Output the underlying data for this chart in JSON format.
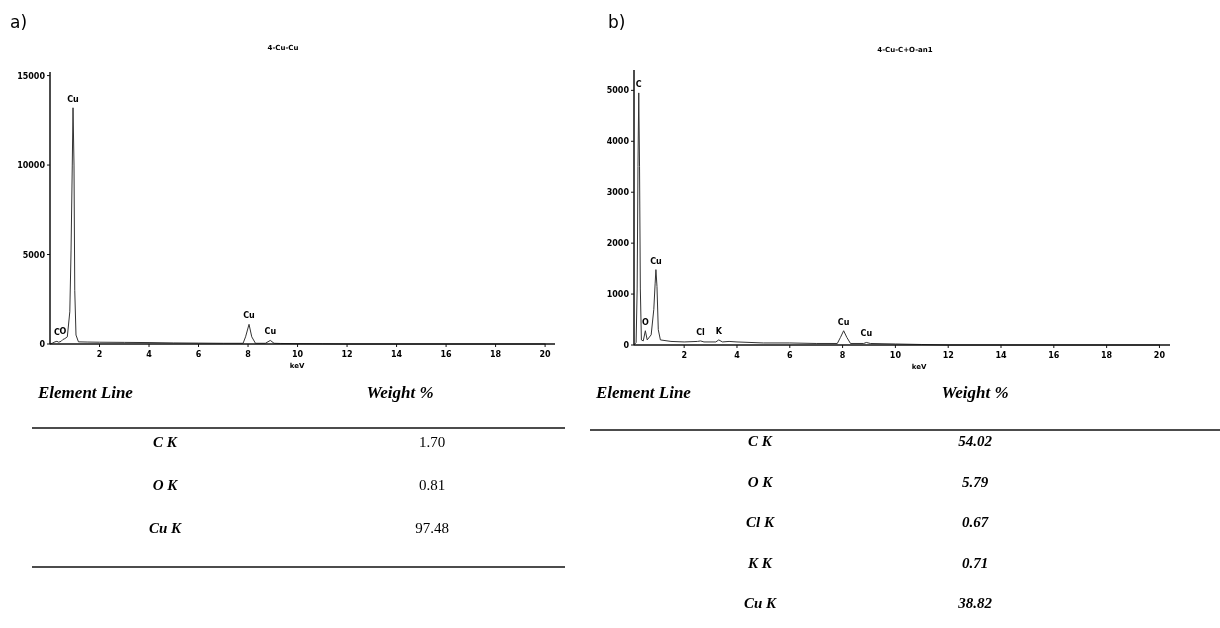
{
  "chart_data": [
    {
      "type": "line",
      "title": "4-Cu-Cu",
      "xlabel": "keV",
      "xlim": [
        0,
        20.4
      ],
      "xticks": [
        2,
        4,
        6,
        8,
        10,
        12,
        14,
        16,
        18,
        20
      ],
      "ylim": [
        0,
        15200
      ],
      "yticks": [
        0,
        5000,
        10000,
        15000
      ],
      "marker": "none",
      "line_style": "solid",
      "series": [
        {
          "color": "#333333",
          "x": [
            0,
            0.1,
            0.2,
            0.28,
            0.35,
            0.45,
            0.52,
            0.6,
            0.7,
            0.8,
            0.85,
            0.9,
            0.93,
            0.97,
            1.0,
            1.05,
            1.15,
            1.5,
            2,
            3,
            4,
            5,
            6,
            7,
            7.8,
            7.9,
            8.04,
            8.15,
            8.3,
            8.7,
            8.9,
            9.05,
            9.3,
            10,
            11,
            12,
            14,
            16,
            18,
            20
          ],
          "values": [
            0,
            50,
            120,
            150,
            100,
            150,
            250,
            300,
            400,
            1800,
            5200,
            10000,
            13200,
            10000,
            3000,
            500,
            120,
            110,
            100,
            90,
            80,
            60,
            50,
            40,
            40,
            400,
            1100,
            400,
            40,
            40,
            200,
            40,
            30,
            20,
            10,
            0,
            0,
            0,
            0,
            0
          ]
        }
      ],
      "annotations": [
        "a)",
        {
          "text": "C",
          "x": 0.28,
          "y": 150
        },
        {
          "text": "O",
          "x": 0.52,
          "y": 250
        },
        {
          "text": "Cu",
          "x": 0.93,
          "y": 13200
        },
        {
          "text": "Cu",
          "x": 8.04,
          "y": 1100
        },
        {
          "text": "Cu",
          "x": 8.9,
          "y": 200
        }
      ]
    },
    {
      "type": "line",
      "title": "4-Cu-C+O-an1",
      "xlabel": "keV",
      "xlim": [
        0.1,
        20.4
      ],
      "xticks": [
        2,
        4,
        6,
        8,
        10,
        12,
        14,
        16,
        18,
        20
      ],
      "ylim": [
        0,
        5400
      ],
      "yticks": [
        0,
        1000,
        2000,
        3000,
        4000,
        5000
      ],
      "marker": "none",
      "line_style": "solid",
      "series": [
        {
          "color": "#333333",
          "x": [
            0.1,
            0.18,
            0.22,
            0.25,
            0.28,
            0.31,
            0.34,
            0.38,
            0.45,
            0.53,
            0.6,
            0.75,
            0.85,
            0.9,
            0.93,
            0.97,
            1.02,
            1.1,
            1.5,
            2,
            2.5,
            2.62,
            2.75,
            3.2,
            3.31,
            3.45,
            3.7,
            4,
            5,
            6,
            7,
            7.8,
            7.92,
            8.04,
            8.16,
            8.3,
            8.8,
            8.9,
            9.05,
            10,
            11,
            12,
            14,
            16,
            18,
            20
          ],
          "values": [
            0,
            50,
            1100,
            3500,
            4950,
            3500,
            1100,
            100,
            80,
            280,
            100,
            200,
            700,
            1200,
            1480,
            1150,
            300,
            100,
            70,
            60,
            70,
            80,
            60,
            60,
            100,
            60,
            70,
            60,
            40,
            40,
            30,
            30,
            150,
            280,
            150,
            30,
            30,
            50,
            30,
            20,
            10,
            0,
            0,
            0,
            0,
            0
          ]
        }
      ],
      "annotations": [
        "b)",
        {
          "text": "C",
          "x": 0.28,
          "y": 4950
        },
        {
          "text": "O",
          "x": 0.53,
          "y": 280
        },
        {
          "text": "Cu",
          "x": 0.93,
          "y": 1480
        },
        {
          "text": "Cl",
          "x": 2.62,
          "y": 80
        },
        {
          "text": "K",
          "x": 3.31,
          "y": 100
        },
        {
          "text": "Cu",
          "x": 8.04,
          "y": 280
        },
        {
          "text": "Cu",
          "x": 8.9,
          "y": 50
        }
      ]
    },
    {
      "type": "other",
      "xlabel": "Element Line",
      "ylabel": "Weight %",
      "categories": [
        "C K",
        "O K",
        "Cu K"
      ],
      "value_labels": [
        "1.70",
        "0.81",
        "97.48"
      ]
    },
    {
      "type": "other",
      "xlabel": "Element Line",
      "ylabel": "Weight %",
      "categories": [
        "C K",
        "O K",
        "Cl K",
        "K K",
        "Cu K"
      ],
      "value_labels": [
        "54.02",
        "5.79",
        "0.67",
        "0.71",
        "38.82"
      ]
    }
  ]
}
